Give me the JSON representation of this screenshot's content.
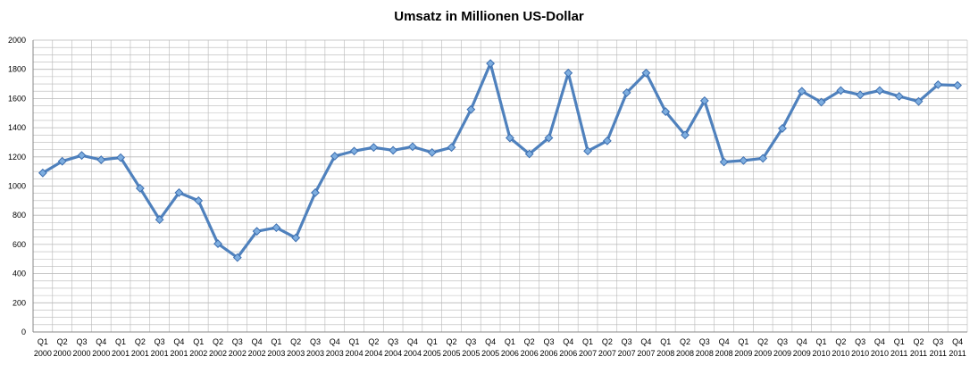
{
  "chart_data": {
    "type": "line",
    "title": "Umsatz in Millionen US-Dollar",
    "xlabel": "",
    "ylabel": "",
    "ylim": [
      0,
      2000
    ],
    "y_ticks": [
      0,
      200,
      400,
      600,
      800,
      1000,
      1200,
      1400,
      1600,
      1800,
      2000
    ],
    "grid": true,
    "legend": "none",
    "categories": [
      {
        "q": "Q1",
        "y": "2000"
      },
      {
        "q": "Q2",
        "y": "2000"
      },
      {
        "q": "Q3",
        "y": "2000"
      },
      {
        "q": "Q4",
        "y": "2000"
      },
      {
        "q": "Q1",
        "y": "2001"
      },
      {
        "q": "Q2",
        "y": "2001"
      },
      {
        "q": "Q3",
        "y": "2001"
      },
      {
        "q": "Q4",
        "y": "2001"
      },
      {
        "q": "Q1",
        "y": "2002"
      },
      {
        "q": "Q2",
        "y": "2002"
      },
      {
        "q": "Q3",
        "y": "2002"
      },
      {
        "q": "Q4",
        "y": "2002"
      },
      {
        "q": "Q1",
        "y": "2003"
      },
      {
        "q": "Q2",
        "y": "2003"
      },
      {
        "q": "Q3",
        "y": "2003"
      },
      {
        "q": "Q4",
        "y": "2003"
      },
      {
        "q": "Q1",
        "y": "2004"
      },
      {
        "q": "Q2",
        "y": "2004"
      },
      {
        "q": "Q3",
        "y": "2004"
      },
      {
        "q": "Q4",
        "y": "2004"
      },
      {
        "q": "Q1",
        "y": "2005"
      },
      {
        "q": "Q2",
        "y": "2005"
      },
      {
        "q": "Q3",
        "y": "2005"
      },
      {
        "q": "Q4",
        "y": "2005"
      },
      {
        "q": "Q1",
        "y": "2006"
      },
      {
        "q": "Q2",
        "y": "2006"
      },
      {
        "q": "Q3",
        "y": "2006"
      },
      {
        "q": "Q4",
        "y": "2006"
      },
      {
        "q": "Q1",
        "y": "2007"
      },
      {
        "q": "Q2",
        "y": "2007"
      },
      {
        "q": "Q3",
        "y": "2007"
      },
      {
        "q": "Q4",
        "y": "2007"
      },
      {
        "q": "Q1",
        "y": "2008"
      },
      {
        "q": "Q2",
        "y": "2008"
      },
      {
        "q": "Q3",
        "y": "2008"
      },
      {
        "q": "Q4",
        "y": "2008"
      },
      {
        "q": "Q1",
        "y": "2009"
      },
      {
        "q": "Q2",
        "y": "2009"
      },
      {
        "q": "Q3",
        "y": "2009"
      },
      {
        "q": "Q4",
        "y": "2009"
      },
      {
        "q": "Q1",
        "y": "2010"
      },
      {
        "q": "Q2",
        "y": "2010"
      },
      {
        "q": "Q3",
        "y": "2010"
      },
      {
        "q": "Q4",
        "y": "2010"
      },
      {
        "q": "Q1",
        "y": "2011"
      },
      {
        "q": "Q2",
        "y": "2011"
      },
      {
        "q": "Q3",
        "y": "2011"
      },
      {
        "q": "Q4",
        "y": "2011"
      }
    ],
    "series": [
      {
        "values": [
          1090,
          1170,
          1210,
          1180,
          1195,
          985,
          770,
          955,
          900,
          605,
          510,
          690,
          715,
          645,
          955,
          1205,
          1240,
          1265,
          1245,
          1270,
          1230,
          1265,
          1525,
          1840,
          1330,
          1220,
          1330,
          1775,
          1240,
          1310,
          1640,
          1775,
          1510,
          1350,
          1585,
          1165,
          1175,
          1190,
          1395,
          1650,
          1575,
          1655,
          1625,
          1655,
          1615,
          1580,
          1695,
          1690
        ],
        "color": "#4f81bd"
      }
    ],
    "colors": {
      "line": "#4f81bd",
      "marker_fill": "#7eaee0",
      "marker_stroke": "#3d6fb0",
      "grid": "#b7b7b7",
      "axis": "#8a8a8a"
    }
  }
}
